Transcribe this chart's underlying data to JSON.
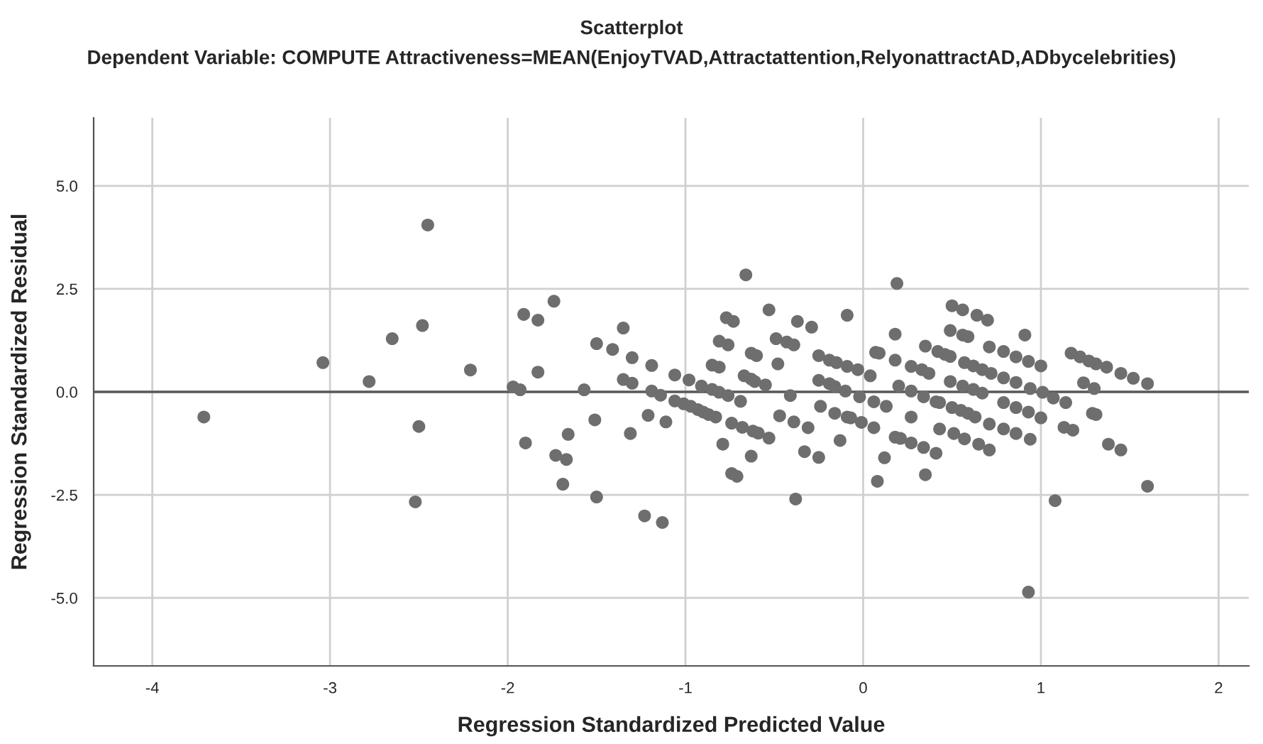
{
  "chart_data": {
    "type": "scatter",
    "title": "Scatterplot",
    "subtitle": "Dependent Variable: COMPUTE Attractiveness=MEAN(EnjoyTVAD,Attractattention,RelyonattractAD,ADbycelebrities)",
    "xlabel": "Regression Standardized Predicted Value",
    "ylabel": "Regression Standardized Residual",
    "xlim": [
      -4.33,
      2.17
    ],
    "ylim": [
      -6.65,
      6.65
    ],
    "xticks": [
      -4,
      -3,
      -2,
      -1,
      0,
      1,
      2
    ],
    "yticks": [
      {
        "value": -5,
        "label": "-5.0"
      },
      {
        "value": -2.5,
        "label": "-2.5"
      },
      {
        "value": 0,
        "label": "0.0"
      },
      {
        "value": 2.5,
        "label": "2.5"
      },
      {
        "value": 5,
        "label": "5.0"
      }
    ],
    "grid": true,
    "marker": "circle",
    "ref_lines": [
      {
        "axis": "y",
        "value": 0,
        "color": "#595959"
      }
    ],
    "series": [
      {
        "color": "#6e6e6e",
        "x": [
          -3.71,
          -3.04,
          -2.78,
          -2.65,
          -2.48,
          -2.45,
          -2.5,
          -2.52,
          -2.21,
          -1.97,
          -1.93,
          -1.91,
          -1.83,
          -1.74,
          -1.83,
          -1.9,
          -1.73,
          -1.67,
          -1.66,
          -1.69,
          -1.5,
          -1.51,
          -1.57,
          -1.5,
          -1.41,
          -1.35,
          -1.35,
          -1.3,
          -1.3,
          -1.31,
          -1.23,
          -1.13,
          -1.21,
          -1.11,
          -1.19,
          -1.19,
          -1.14,
          -1.06,
          -1.06,
          -0.98,
          -1.01,
          -0.97,
          -0.93,
          -0.9,
          -0.87,
          -0.83,
          -0.91,
          -0.85,
          -0.81,
          -0.76,
          -0.69,
          -0.85,
          -0.81,
          -0.81,
          -0.76,
          -0.77,
          -0.73,
          -0.66,
          -0.63,
          -0.6,
          -0.67,
          -0.63,
          -0.61,
          -0.74,
          -0.68,
          -0.62,
          -0.59,
          -0.79,
          -0.63,
          -0.74,
          -0.71,
          -0.55,
          -0.53,
          -0.53,
          -0.49,
          -0.43,
          -0.39,
          -0.37,
          -0.29,
          -0.09,
          -0.48,
          -0.41,
          -0.47,
          -0.39,
          -0.31,
          -0.33,
          -0.25,
          -0.38,
          -0.13,
          -0.25,
          -0.19,
          -0.15,
          -0.09,
          -0.03,
          0.04,
          -0.25,
          -0.19,
          -0.16,
          -0.1,
          -0.02,
          -0.24,
          -0.16,
          -0.09,
          -0.07,
          -0.01,
          0.06,
          0.06,
          0.13,
          0.07,
          0.09,
          0.18,
          0.19,
          0.18,
          0.2,
          0.27,
          0.27,
          0.33,
          0.37,
          0.35,
          0.42,
          0.46,
          0.34,
          0.41,
          0.43,
          0.27,
          0.18,
          0.21,
          0.27,
          0.34,
          0.41,
          0.12,
          0.08,
          0.35,
          0.43,
          0.5,
          0.56,
          0.64,
          0.7,
          0.49,
          0.56,
          0.59,
          0.71,
          0.49,
          0.57,
          0.62,
          0.67,
          0.49,
          0.56,
          0.62,
          0.67,
          0.5,
          0.55,
          0.59,
          0.63,
          0.71,
          0.51,
          0.57,
          0.65,
          0.71,
          0.91,
          0.79,
          0.86,
          0.93,
          1.0,
          0.72,
          0.79,
          0.86,
          0.94,
          1.01,
          1.07,
          1.14,
          0.79,
          0.86,
          0.93,
          1.0,
          0.79,
          0.86,
          0.94,
          1.17,
          1.22,
          1.27,
          1.31,
          1.37,
          1.45,
          1.52,
          1.6,
          1.24,
          1.3,
          1.29,
          1.31,
          1.13,
          1.18,
          1.38,
          1.45,
          1.6,
          1.08,
          0.93
        ],
        "values": [
          -0.61,
          0.71,
          0.25,
          1.29,
          1.61,
          4.05,
          -0.84,
          -2.67,
          0.53,
          0.12,
          0.05,
          1.88,
          1.74,
          2.2,
          0.48,
          -1.24,
          -1.54,
          -1.64,
          -1.03,
          -2.24,
          -2.55,
          -0.68,
          0.05,
          1.17,
          1.03,
          1.55,
          0.3,
          0.21,
          0.83,
          -1.01,
          -3.01,
          -3.17,
          -0.57,
          -0.73,
          0.64,
          0.02,
          -0.08,
          0.41,
          -0.22,
          0.29,
          -0.29,
          -0.35,
          -0.43,
          -0.49,
          -0.55,
          -0.61,
          0.14,
          0.06,
          -0.01,
          -0.09,
          -0.23,
          0.65,
          0.6,
          1.23,
          1.14,
          1.8,
          1.71,
          2.84,
          0.94,
          0.88,
          0.39,
          0.31,
          0.25,
          -0.76,
          -0.86,
          -0.95,
          -1.0,
          -1.27,
          -1.56,
          -1.98,
          -2.05,
          0.17,
          -1.12,
          1.99,
          1.29,
          1.21,
          1.14,
          1.71,
          1.57,
          1.86,
          0.68,
          -0.09,
          -0.58,
          -0.73,
          -0.87,
          -1.45,
          -1.59,
          -2.6,
          -1.18,
          0.88,
          0.77,
          0.71,
          0.62,
          0.54,
          0.39,
          0.28,
          0.2,
          0.13,
          0.02,
          -0.12,
          -0.35,
          -0.52,
          -0.61,
          -0.63,
          -0.74,
          -0.87,
          -0.24,
          -0.35,
          0.96,
          0.94,
          1.4,
          2.63,
          0.77,
          0.14,
          0.02,
          0.62,
          0.54,
          0.45,
          1.11,
          0.98,
          0.91,
          -0.12,
          -0.24,
          -0.26,
          -0.61,
          -1.1,
          -1.13,
          -1.24,
          -1.35,
          -1.49,
          -1.6,
          -2.17,
          -2.01,
          -0.9,
          2.09,
          1.99,
          1.86,
          1.74,
          1.49,
          1.38,
          1.34,
          1.09,
          0.86,
          0.71,
          0.63,
          0.54,
          0.25,
          0.14,
          0.06,
          -0.03,
          -0.38,
          -0.45,
          -0.52,
          -0.61,
          -0.78,
          -1.01,
          -1.14,
          -1.27,
          -1.41,
          1.38,
          0.98,
          0.85,
          0.74,
          0.63,
          0.45,
          0.34,
          0.23,
          0.08,
          -0.01,
          -0.15,
          -0.26,
          -0.26,
          -0.38,
          -0.49,
          -0.63,
          -0.9,
          -1.01,
          -1.15,
          0.94,
          0.85,
          0.75,
          0.68,
          0.6,
          0.45,
          0.33,
          0.2,
          0.22,
          0.08,
          -0.52,
          -0.55,
          -0.86,
          -0.93,
          -1.27,
          -1.41,
          -2.29,
          -2.64,
          -4.86
        ]
      }
    ]
  }
}
